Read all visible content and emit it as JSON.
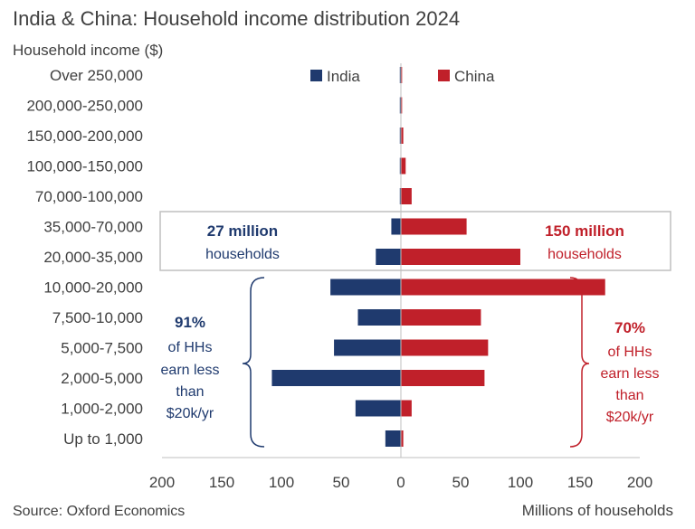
{
  "title": "India & China: Household income distribution 2024",
  "source": "Source: Oxford Economics",
  "colors": {
    "india": "#1f3a6e",
    "china": "#c0202a",
    "box": "#bfbfbf",
    "text": "#404040"
  },
  "chart_data": {
    "type": "bar",
    "orientation": "horizontal-diverging",
    "title": "India & China: Household income distribution 2024",
    "ylabel": "Household income ($)",
    "xlabel": "Millions of households",
    "categories": [
      "Over 250,000",
      "200,000-250,000",
      "150,000-200,000",
      "100,000-150,000",
      "70,000-100,000",
      "35,000-70,000",
      "20,000-35,000",
      "10,000-20,000",
      "7,500-10,000",
      "5,000-7,500",
      "2,000-5,000",
      "1,000-2,000",
      "Up to 1,000"
    ],
    "series": [
      {
        "name": "India",
        "values": [
          0.3,
          0.3,
          0.4,
          0.5,
          0.5,
          8,
          21,
          59,
          36,
          56,
          108,
          38,
          13
        ]
      },
      {
        "name": "China",
        "values": [
          1,
          1,
          2,
          4,
          9,
          55,
          100,
          171,
          67,
          73,
          70,
          9,
          2
        ]
      }
    ],
    "xticks": [
      200,
      150,
      100,
      50,
      0,
      50,
      100,
      150,
      200
    ],
    "xlim": [
      -200,
      200
    ],
    "legend": {
      "position": "top-center"
    },
    "annotations": {
      "india_box": {
        "bold": "27 million",
        "text": "households"
      },
      "china_box": {
        "bold": "150 million",
        "text": "households"
      },
      "india_share": {
        "bold": "91%",
        "lines": [
          "of HHs",
          "earn less",
          "than",
          "$20k/yr"
        ]
      },
      "china_share": {
        "bold": "70%",
        "lines": [
          "of HHs",
          "earn less",
          "than",
          "$20k/yr"
        ]
      }
    }
  }
}
